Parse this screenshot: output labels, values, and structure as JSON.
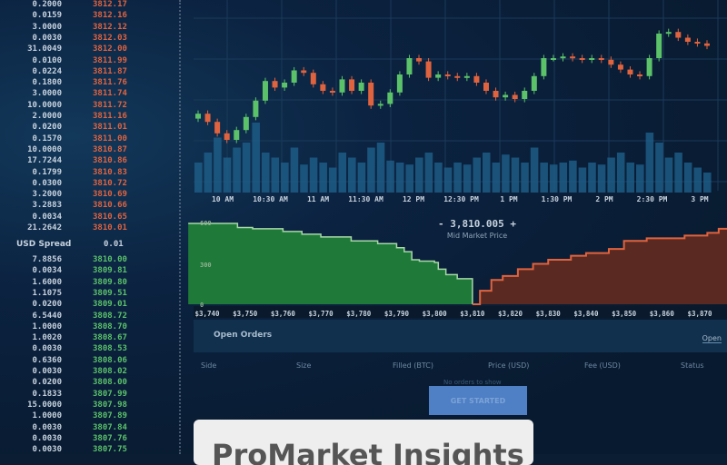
{
  "order_book": {
    "asks": [
      [
        "0.2000",
        "3812.17"
      ],
      [
        "0.0159",
        "3812.16"
      ],
      [
        "3.0000",
        "3812.12"
      ],
      [
        "0.0030",
        "3812.03"
      ],
      [
        "31.0049",
        "3812.00"
      ],
      [
        "0.0100",
        "3811.99"
      ],
      [
        "0.0224",
        "3811.87"
      ],
      [
        "0.1800",
        "3811.76"
      ],
      [
        "3.0000",
        "3811.74"
      ],
      [
        "10.0000",
        "3811.72"
      ],
      [
        "2.0000",
        "3811.16"
      ],
      [
        "0.0200",
        "3811.01"
      ],
      [
        "0.1570",
        "3811.00"
      ],
      [
        "10.0000",
        "3810.87"
      ],
      [
        "17.7244",
        "3810.86"
      ],
      [
        "0.1799",
        "3810.83"
      ],
      [
        "0.0300",
        "3810.72"
      ],
      [
        "3.2000",
        "3810.69"
      ],
      [
        "3.2883",
        "3810.66"
      ],
      [
        "0.0034",
        "3810.65"
      ],
      [
        "21.2642",
        "3810.01"
      ]
    ],
    "spread_label": "USD Spread",
    "spread_value": "0.01",
    "bids": [
      [
        "7.8856",
        "3810.00"
      ],
      [
        "0.0034",
        "3809.81"
      ],
      [
        "1.6000",
        "3809.80"
      ],
      [
        "1.1075",
        "3809.51"
      ],
      [
        "0.0200",
        "3809.01"
      ],
      [
        "6.5440",
        "3808.72"
      ],
      [
        "1.0000",
        "3808.70"
      ],
      [
        "1.0020",
        "3808.67"
      ],
      [
        "0.0030",
        "3808.53"
      ],
      [
        "0.6360",
        "3808.06"
      ],
      [
        "0.0030",
        "3808.02"
      ],
      [
        "0.0200",
        "3808.00"
      ],
      [
        "0.1833",
        "3807.99"
      ],
      [
        "15.0000",
        "3807.98"
      ],
      [
        "1.0000",
        "3807.89"
      ],
      [
        "0.0030",
        "3807.84"
      ],
      [
        "0.0030",
        "3807.76"
      ],
      [
        "0.0030",
        "3807.75"
      ]
    ]
  },
  "colors": {
    "up": "#5bc26a",
    "down": "#e0633f",
    "bid_fill": "#1f7a3a",
    "ask_fill": "#5a2a22",
    "volume": "#1e5f8a",
    "button": "#4f7fc4"
  },
  "chart_data": [
    {
      "type": "candlestick",
      "x_ticks": [
        "10 AM",
        "10:30 AM",
        "11 AM",
        "11:30 AM",
        "12 PM",
        "12:30 PM",
        "1 PM",
        "1:30 PM",
        "2 PM",
        "2:30 PM",
        "3 PM"
      ],
      "closes": [
        72,
        62,
        48,
        40,
        52,
        68,
        88,
        112,
        104,
        110,
        125,
        122,
        108,
        100,
        98,
        114,
        100,
        110,
        82,
        84,
        98,
        120,
        140,
        136,
        116,
        120,
        118,
        116,
        118,
        110,
        100,
        92,
        95,
        90,
        100,
        118,
        140,
        140,
        142,
        140,
        138,
        140,
        138,
        132,
        126,
        120,
        118,
        140,
        170,
        172,
        165,
        160,
        158,
        155
      ],
      "volume": [
        30,
        40,
        55,
        35,
        45,
        50,
        70,
        40,
        35,
        30,
        45,
        28,
        35,
        30,
        25,
        40,
        35,
        30,
        45,
        50,
        32,
        30,
        28,
        35,
        40,
        30,
        25,
        30,
        28,
        35,
        40,
        30,
        38,
        35,
        30,
        45,
        30,
        28,
        30,
        32,
        25,
        30,
        28,
        35,
        40,
        30,
        28,
        60,
        50,
        35,
        40,
        30,
        25,
        20
      ]
    },
    {
      "type": "area",
      "name": "depth",
      "x_ticks": [
        "$3,740",
        "$3,750",
        "$3,760",
        "$3,770",
        "$3,780",
        "$3,790",
        "$3,800",
        "$3,810",
        "$3,820",
        "$3,830",
        "$3,840",
        "$3,850",
        "$3,860",
        "$3,870"
      ],
      "y_ticks": [
        "600",
        "300",
        "0"
      ],
      "ylim": [
        0,
        600
      ],
      "bids": [
        [
          3740,
          600
        ],
        [
          3747,
          600
        ],
        [
          3748,
          570
        ],
        [
          3752,
          560
        ],
        [
          3760,
          540
        ],
        [
          3765,
          520
        ],
        [
          3770,
          500
        ],
        [
          3778,
          470
        ],
        [
          3785,
          450
        ],
        [
          3790,
          420
        ],
        [
          3792,
          390
        ],
        [
          3794,
          330
        ],
        [
          3796,
          320
        ],
        [
          3800,
          310
        ],
        [
          3801,
          260
        ],
        [
          3803,
          220
        ],
        [
          3806,
          190
        ],
        [
          3810,
          0
        ]
      ],
      "asks": [
        [
          3810,
          0
        ],
        [
          3812,
          100
        ],
        [
          3815,
          180
        ],
        [
          3818,
          210
        ],
        [
          3822,
          260
        ],
        [
          3826,
          300
        ],
        [
          3830,
          330
        ],
        [
          3836,
          360
        ],
        [
          3840,
          380
        ],
        [
          3846,
          410
        ],
        [
          3850,
          470
        ],
        [
          3856,
          490
        ],
        [
          3866,
          510
        ],
        [
          3872,
          530
        ],
        [
          3875,
          560
        ]
      ]
    }
  ],
  "mid_market": {
    "price": "- 3,810.005 +",
    "label": "Mid Market Price"
  },
  "open_orders": {
    "title": "Open Orders",
    "tab": "Open",
    "columns": [
      "Side",
      "Size",
      "Filled (BTC)",
      "Price (USD)",
      "Fee (USD)",
      "Status"
    ],
    "empty": "No orders to show"
  },
  "cta": {
    "label": "GET STARTED"
  },
  "card": {
    "title": "ProMarket Insights"
  }
}
